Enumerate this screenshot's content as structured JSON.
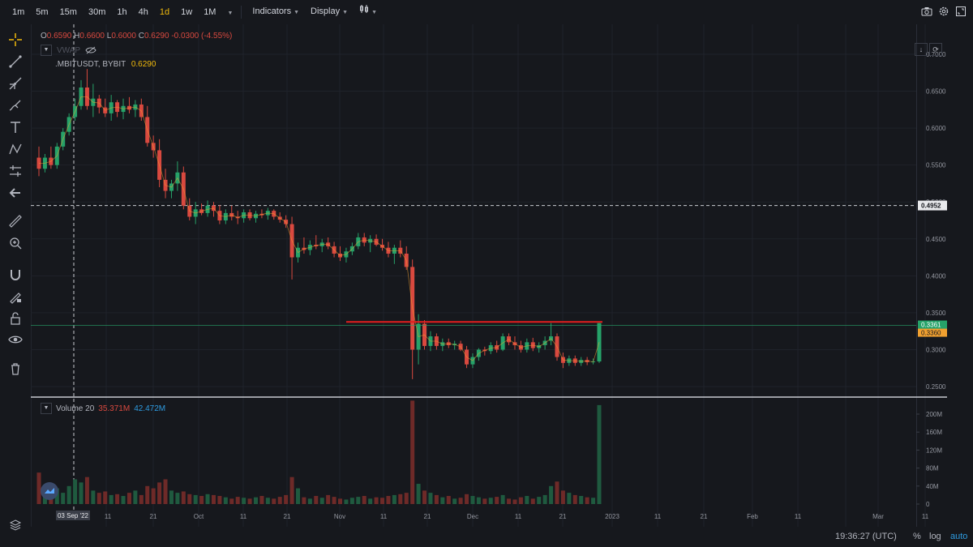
{
  "toolbar": {
    "timeframes": [
      "1m",
      "5m",
      "15m",
      "30m",
      "1h",
      "4h",
      "1d",
      "1w",
      "1M"
    ],
    "active_timeframe": "1d",
    "indicators_label": "Indicators",
    "display_label": "Display"
  },
  "ohlc": {
    "o_label": "O",
    "o_value": "0.6590",
    "h_label": "H",
    "h_value": "0.6600",
    "l_label": "L",
    "l_value": "0.6000",
    "c_label": "C",
    "c_value": "0.6290",
    "change": "-0.0300 (-4.55%)"
  },
  "indicators": {
    "vwap_label": "VWAP",
    "symbol_label": ".MBITUSDT, BYBIT",
    "symbol_price": "0.6290",
    "volume_label": "Volume 20",
    "volume_value_1": "35.371M",
    "volume_value_2": "42.472M"
  },
  "price_axis": {
    "ticks": [
      "0.7000",
      "0.6500",
      "0.6000",
      "0.5500",
      "0.5000",
      "0.4500",
      "0.4000",
      "0.3500",
      "0.3000",
      "0.2500"
    ],
    "crosshair_price": "0.4952",
    "last_price_green": "0.3361",
    "last_price_orange": "0.3360"
  },
  "volume_axis": {
    "ticks": [
      "200M",
      "160M",
      "120M",
      "80M",
      "40M",
      "0"
    ]
  },
  "time_axis": {
    "labels": [
      "11",
      "21",
      "Oct",
      "11",
      "21",
      "Nov",
      "11",
      "21",
      "Dec",
      "11",
      "21",
      "2023",
      "11",
      "21",
      "Feb",
      "11",
      "Mar",
      "11"
    ],
    "crosshair_date": "03 Sep '22"
  },
  "footer": {
    "clock": "19:36:27 (UTC)",
    "percent_label": "%",
    "log_label": "log",
    "auto_label": "auto"
  },
  "colors": {
    "up": "#26a269",
    "down": "#d9493f",
    "accent": "#f0b90b",
    "hline": "#e01e1e",
    "last_line": "#26a269"
  }
}
